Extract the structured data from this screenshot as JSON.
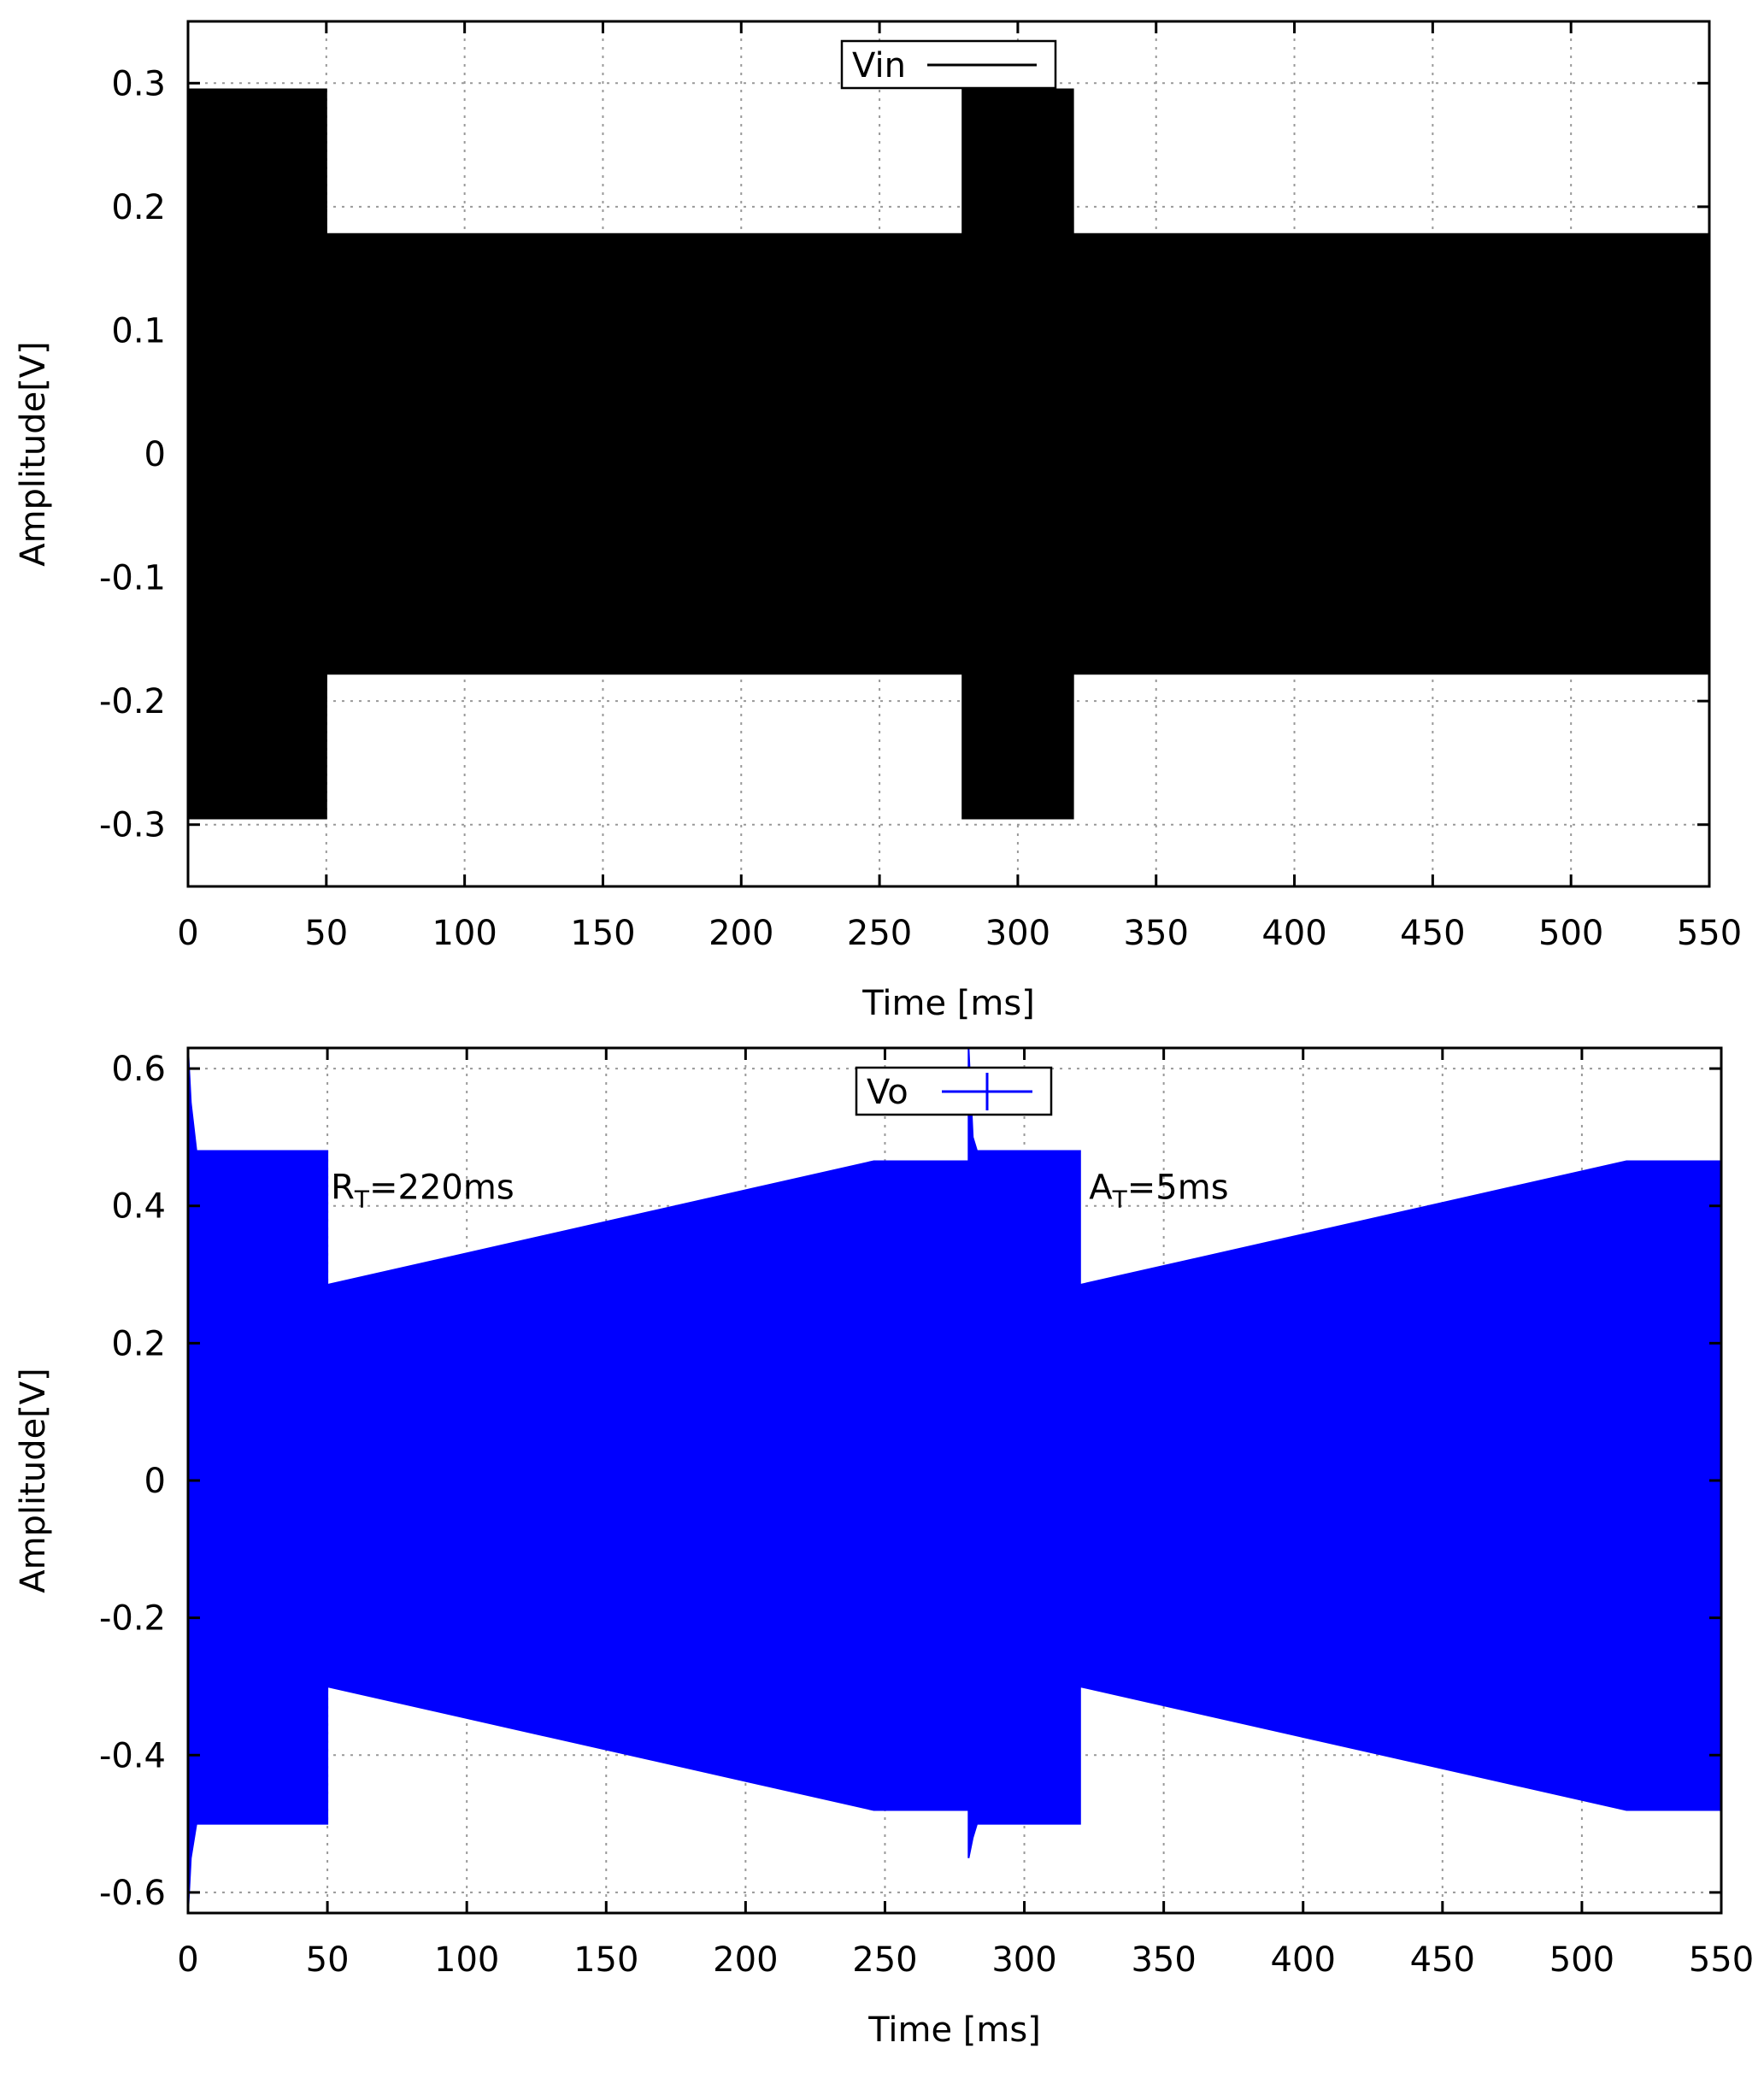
{
  "chart_data": [
    {
      "type": "line",
      "xlabel": "Time [ms]",
      "ylabel": "Amplitude[V]",
      "xlim": [
        0,
        550
      ],
      "ylim": [
        -0.35,
        0.35
      ],
      "xticks": [
        0,
        50,
        100,
        150,
        200,
        250,
        300,
        350,
        400,
        450,
        500,
        550
      ],
      "yticks": [
        -0.3,
        -0.2,
        -0.1,
        0,
        0.1,
        0.2,
        0.3
      ],
      "ytick_labels": [
        "-0.3",
        "-0.2",
        "-0.1",
        "0",
        "0.1",
        "0.2",
        "0.3"
      ],
      "grid": true,
      "legend_position": "top-center",
      "series": [
        {
          "name": "Vin",
          "color": "#000000",
          "style": "dense oscillation shown as amplitude envelope",
          "envelope": {
            "x": [
              0,
              50,
              50.01,
              280,
              280.01,
              320,
              320.01,
              550
            ],
            "upper": [
              0.295,
              0.295,
              0.178,
              0.178,
              0.295,
              0.295,
              0.178,
              0.178
            ],
            "lower": [
              -0.295,
              -0.295,
              -0.178,
              -0.178,
              -0.295,
              -0.295,
              -0.178,
              -0.178
            ]
          }
        }
      ]
    },
    {
      "type": "line",
      "xlabel": "Time [ms]",
      "ylabel": "Amplitude[V]",
      "xlim": [
        0,
        550
      ],
      "ylim": [
        -0.63,
        0.63
      ],
      "xticks": [
        0,
        50,
        100,
        150,
        200,
        250,
        300,
        350,
        400,
        450,
        500,
        550
      ],
      "yticks": [
        -0.6,
        -0.4,
        -0.2,
        0,
        0.2,
        0.4,
        0.6
      ],
      "ytick_labels": [
        "-0.6",
        "-0.4",
        "-0.2",
        "0",
        "0.2",
        "0.4",
        "0.6"
      ],
      "grid": true,
      "legend_position": "top-center",
      "series": [
        {
          "name": "Vo",
          "color": "#0000ff",
          "style": "dense oscillation shown as amplitude envelope",
          "envelope": {
            "x": [
              0,
              1,
              3,
              50,
              50.01,
              246,
              280,
              280.01,
              281.5,
              283,
              320,
              320.01,
              516,
              550
            ],
            "upper": [
              0.63,
              0.55,
              0.48,
              0.48,
              0.285,
              0.465,
              0.465,
              0.63,
              0.5,
              0.48,
              0.48,
              0.285,
              0.465,
              0.465
            ],
            "lower": [
              -0.63,
              -0.55,
              -0.5,
              -0.5,
              -0.3,
              -0.48,
              -0.48,
              -0.55,
              -0.52,
              -0.5,
              -0.5,
              -0.3,
              -0.48,
              -0.48
            ]
          }
        }
      ],
      "annotations": [
        {
          "main": "R",
          "sub": "T",
          "rest": "=220ms",
          "x": 50,
          "y": 0.41
        },
        {
          "main": "A",
          "sub": "T",
          "rest": "=5ms",
          "x": 322,
          "y": 0.41
        }
      ]
    }
  ]
}
